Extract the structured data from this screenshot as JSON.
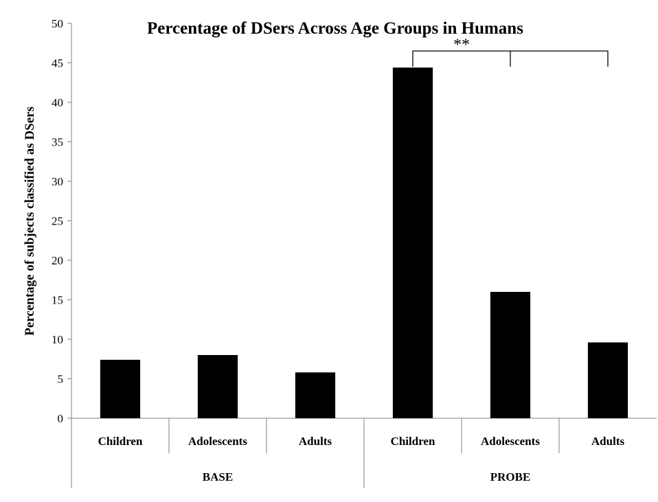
{
  "chart_data": {
    "type": "bar",
    "title": "Percentage of  DSers Across Age Groups in Humans",
    "ylabel": "Percentage of subjects classified as DSers",
    "xlabel": "",
    "ylim": [
      0,
      50
    ],
    "yticks": [
      0,
      5,
      10,
      15,
      20,
      25,
      30,
      35,
      40,
      45,
      50
    ],
    "grid": false,
    "bar_color": "#000000",
    "groups": [
      {
        "name": "BASE",
        "categories": [
          "Children",
          "Adolescents",
          "Adults"
        ],
        "values": [
          7.4,
          8.0,
          5.8
        ]
      },
      {
        "name": "PROBE",
        "categories": [
          "Children",
          "Adolescents",
          "Adults"
        ],
        "values": [
          44.4,
          16.0,
          9.6
        ]
      }
    ],
    "annotations": [
      {
        "text": "**",
        "type": "significance-bracket",
        "from": "PROBE Children",
        "to": [
          "PROBE Adolescents",
          "PROBE Adults"
        ]
      }
    ]
  }
}
